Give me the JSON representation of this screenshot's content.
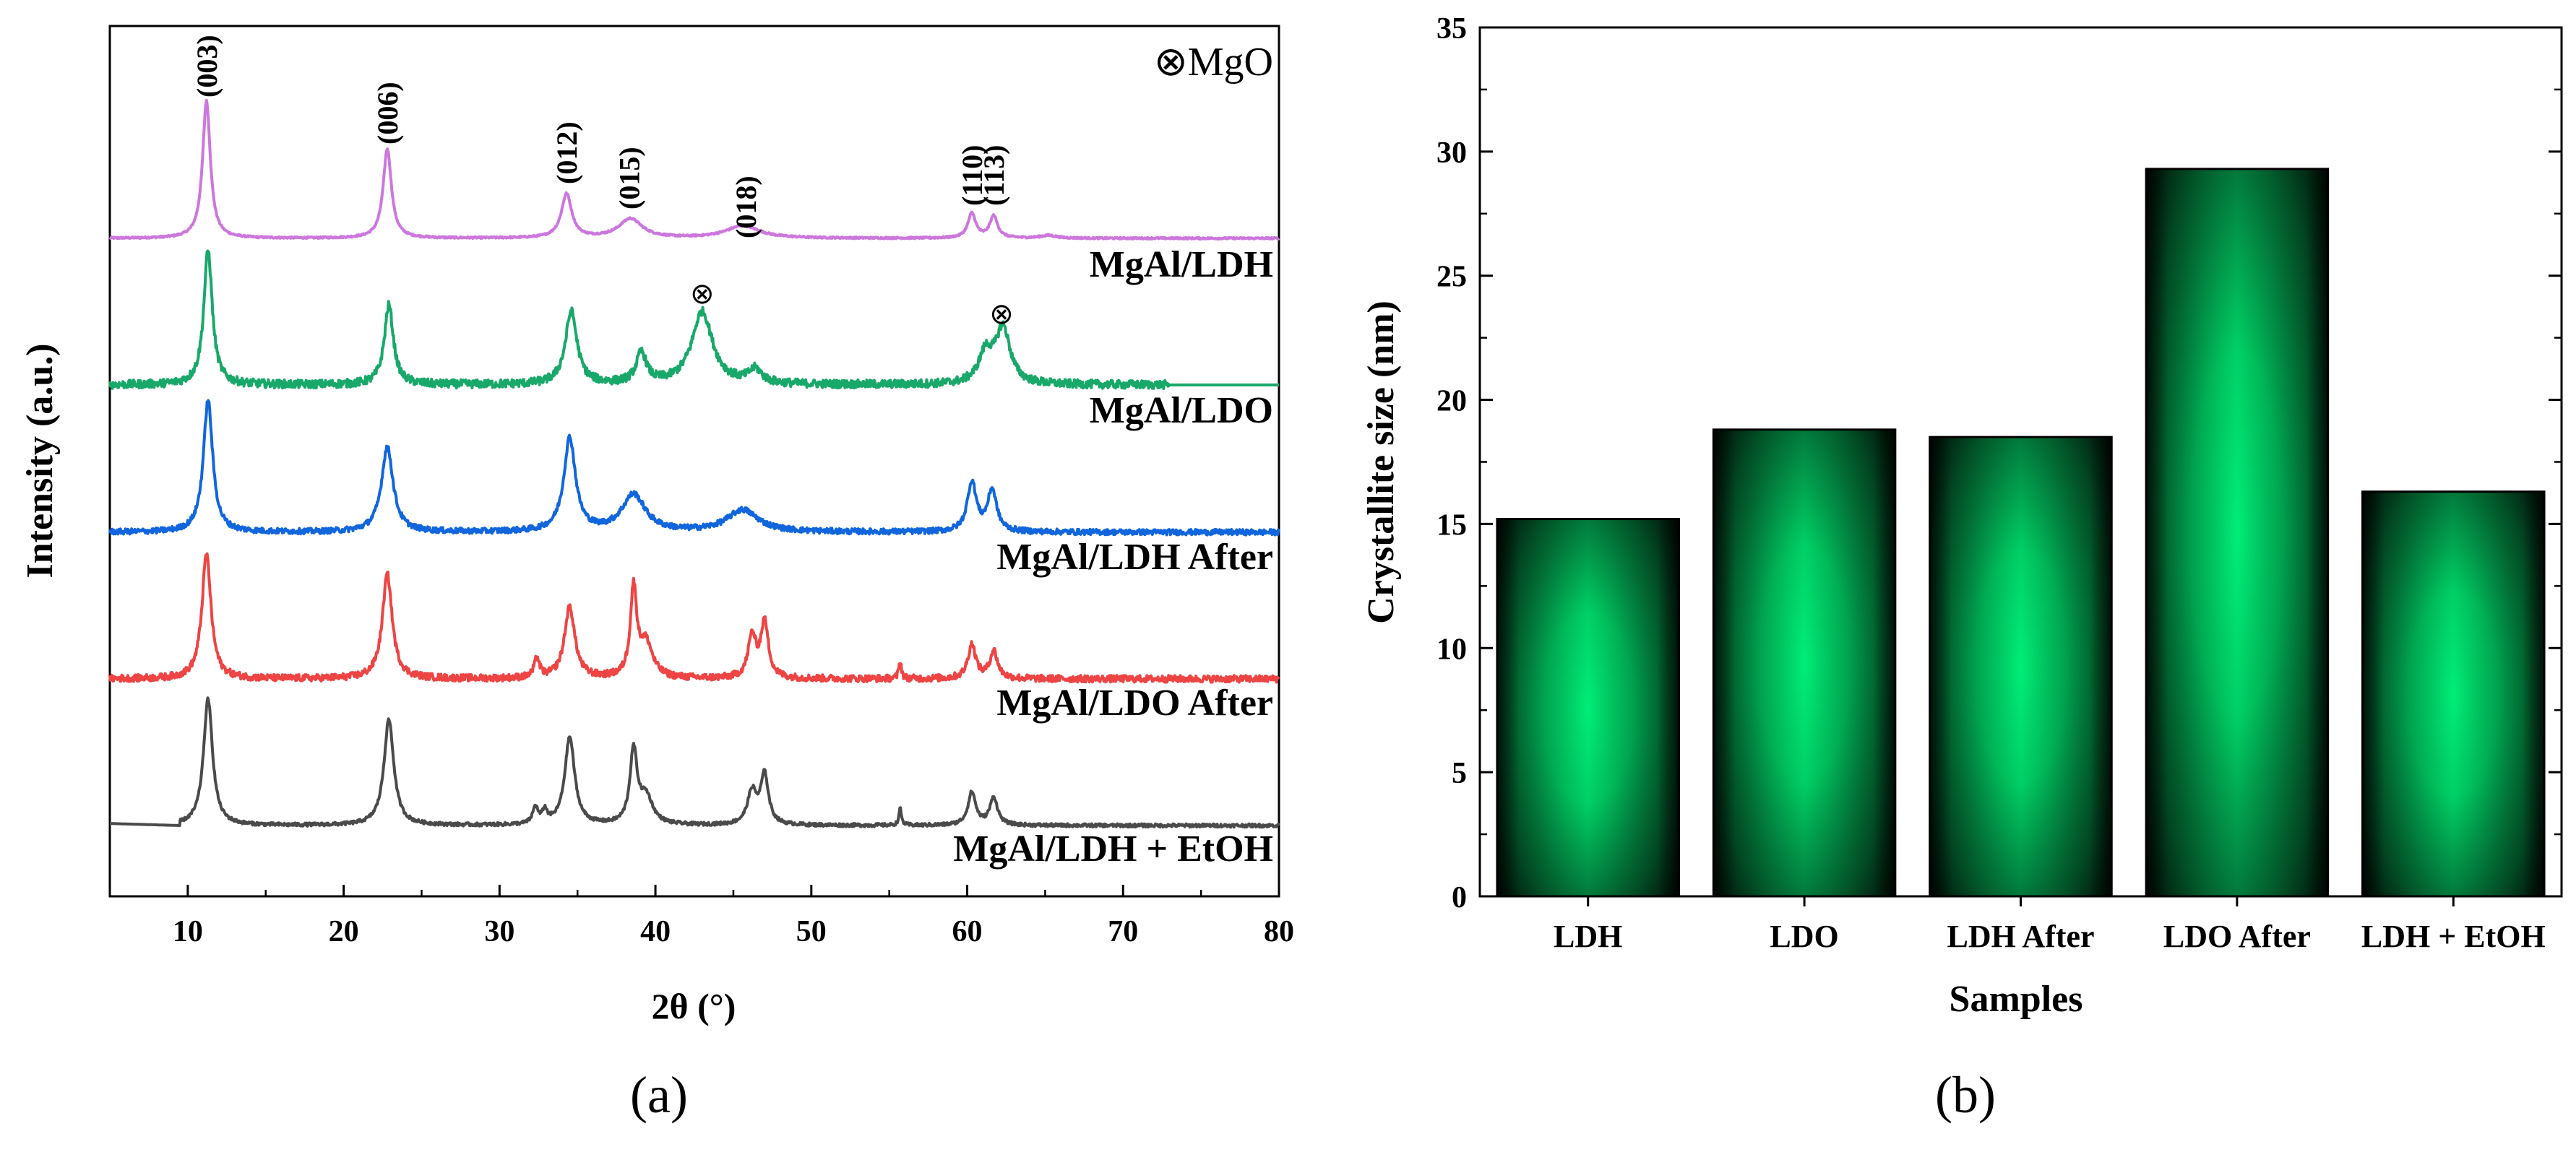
{
  "chart_data": [
    {
      "type": "line",
      "panel_label": "(a)",
      "xlabel": "2θ (°)",
      "ylabel": "Intensity (a.u.)",
      "xlim": [
        5,
        80
      ],
      "xticks": [
        "10",
        "20",
        "30",
        "40",
        "50",
        "60",
        "70",
        "80"
      ],
      "xtick_values": [
        10,
        20,
        30,
        40,
        50,
        60,
        70,
        80
      ],
      "y_ticks_shown": false,
      "annotation": "⊗MgO",
      "mgo_marker": "⊗",
      "mgo_marker_positions_2theta": [
        43.0,
        62.2
      ],
      "peak_labels": [
        {
          "label": "(003)",
          "two_theta": 11.2
        },
        {
          "label": "(006)",
          "two_theta": 22.8
        },
        {
          "label": "(012)",
          "two_theta": 34.3
        },
        {
          "label": "(015)",
          "two_theta": 38.3
        },
        {
          "label": "(018)",
          "two_theta": 45.8
        },
        {
          "label": "(110)",
          "two_theta": 60.3
        },
        {
          "label": "(113)",
          "two_theta": 61.7
        }
      ],
      "series": [
        {
          "name": "MgAl/LDH",
          "color": "#cc77dd",
          "offset": 4,
          "x_start": 5,
          "peaks": [
            [
              11.2,
              1.0,
              0.3
            ],
            [
              22.8,
              0.65,
              0.32
            ],
            [
              34.3,
              0.32,
              0.4
            ],
            [
              38.4,
              0.14,
              0.9
            ],
            [
              45.6,
              0.09,
              1.3
            ],
            [
              60.3,
              0.18,
              0.3
            ],
            [
              61.7,
              0.16,
              0.3
            ],
            [
              65.2,
              0.02,
              0.6
            ]
          ],
          "noise": 0.006
        },
        {
          "name": "MgAl/LDO",
          "color": "#18a86a",
          "offset": 3,
          "x_start": 5,
          "x_end": 73,
          "peaks": [
            [
              11.3,
              0.98,
              0.33
            ],
            [
              22.9,
              0.58,
              0.35
            ],
            [
              34.6,
              0.53,
              0.45
            ],
            [
              39.1,
              0.22,
              0.4
            ],
            [
              43.0,
              0.53,
              0.8
            ],
            [
              46.4,
              0.1,
              0.5
            ],
            [
              61.2,
              0.22,
              0.55
            ],
            [
              62.3,
              0.4,
              0.55
            ]
          ],
          "noise": 0.03,
          "tail_after_70": 0.0
        },
        {
          "name": "MgAl/LDH After",
          "color": "#1166dd",
          "offset": 2,
          "x_start": 5,
          "peaks": [
            [
              11.3,
              0.96,
              0.36
            ],
            [
              22.8,
              0.62,
              0.45
            ],
            [
              34.5,
              0.68,
              0.45
            ],
            [
              38.6,
              0.27,
              0.9
            ],
            [
              45.6,
              0.16,
              1.2
            ],
            [
              60.3,
              0.36,
              0.35
            ],
            [
              61.6,
              0.3,
              0.35
            ]
          ],
          "noise": 0.02
        },
        {
          "name": "MgAl/LDO After",
          "color": "#ee4444",
          "offset": 1,
          "x_start": 5,
          "peaks": [
            [
              11.2,
              0.91,
              0.35
            ],
            [
              22.8,
              0.76,
              0.38
            ],
            [
              32.4,
              0.14,
              0.2
            ],
            [
              34.5,
              0.52,
              0.4
            ],
            [
              38.6,
              0.64,
              0.25
            ],
            [
              39.4,
              0.25,
              0.5
            ],
            [
              46.2,
              0.3,
              0.3
            ],
            [
              47.0,
              0.4,
              0.3
            ],
            [
              55.7,
              0.13,
              0.1
            ],
            [
              60.3,
              0.25,
              0.3
            ],
            [
              61.7,
              0.2,
              0.3
            ]
          ],
          "noise": 0.025
        },
        {
          "name": "MgAl/LDH + EtOH",
          "color": "#4a4a4a",
          "offset": 0,
          "x_start": 5,
          "peaks": [
            [
              11.3,
              0.92,
              0.35
            ],
            [
              22.9,
              0.77,
              0.38
            ],
            [
              32.3,
              0.12,
              0.2
            ],
            [
              32.9,
              0.09,
              0.2
            ],
            [
              34.5,
              0.64,
              0.38
            ],
            [
              38.6,
              0.53,
              0.28
            ],
            [
              39.4,
              0.2,
              0.5
            ],
            [
              46.2,
              0.24,
              0.35
            ],
            [
              47.0,
              0.36,
              0.3
            ],
            [
              55.7,
              0.12,
              0.1
            ],
            [
              60.3,
              0.24,
              0.3
            ],
            [
              61.7,
              0.2,
              0.3
            ]
          ],
          "noise": 0.012
        }
      ]
    },
    {
      "type": "bar",
      "panel_label": "(b)",
      "xlabel": "Samples",
      "ylabel": "Crystallite size (nm)",
      "ylim": [
        0,
        35
      ],
      "yticks": [
        "0",
        "5",
        "10",
        "15",
        "20",
        "25",
        "30",
        "35"
      ],
      "ytick_values": [
        0,
        5,
        10,
        15,
        20,
        25,
        30,
        35
      ],
      "categories": [
        "LDH",
        "LDO",
        "LDH After",
        "LDO After",
        "LDH + EtOH"
      ],
      "values": [
        15.2,
        18.8,
        18.5,
        29.3,
        16.3
      ],
      "bar_center_color": "#00ee77",
      "bar_edge_color": "#000000"
    }
  ]
}
